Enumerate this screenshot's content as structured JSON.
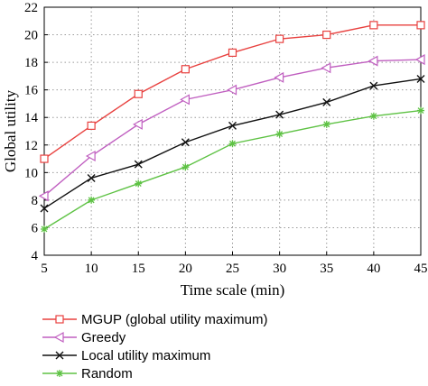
{
  "chart_data": {
    "type": "line",
    "title": "",
    "xlabel": "Time scale (min)",
    "ylabel": "Global utility",
    "x": [
      5,
      10,
      15,
      20,
      25,
      30,
      35,
      40,
      45
    ],
    "xlim": [
      5,
      45
    ],
    "ylim": [
      4,
      22
    ],
    "xticks": [
      5,
      10,
      15,
      20,
      25,
      30,
      35,
      40,
      45
    ],
    "yticks": [
      4,
      6,
      8,
      10,
      12,
      14,
      16,
      18,
      20,
      22
    ],
    "grid": true,
    "legend_position": "bottom",
    "series": [
      {
        "name": "MGUP (global utility maximum)",
        "color": "#e8413f",
        "marker": "square",
        "values": [
          11.0,
          13.4,
          15.7,
          17.5,
          18.7,
          19.7,
          20.0,
          20.7,
          20.7
        ]
      },
      {
        "name": "Greedy",
        "color": "#c05fc0",
        "marker": "triangle-left",
        "values": [
          8.3,
          11.2,
          13.5,
          15.3,
          16.0,
          16.9,
          17.6,
          18.1,
          18.2
        ]
      },
      {
        "name": "Local utility maximum",
        "color": "#111111",
        "marker": "x",
        "values": [
          7.4,
          9.6,
          10.6,
          12.2,
          13.4,
          14.2,
          15.1,
          16.3,
          16.8
        ]
      },
      {
        "name": "Random",
        "color": "#5ec244",
        "marker": "star",
        "values": [
          5.9,
          8.0,
          9.2,
          10.4,
          12.1,
          12.8,
          13.5,
          14.1,
          14.5
        ]
      }
    ]
  }
}
